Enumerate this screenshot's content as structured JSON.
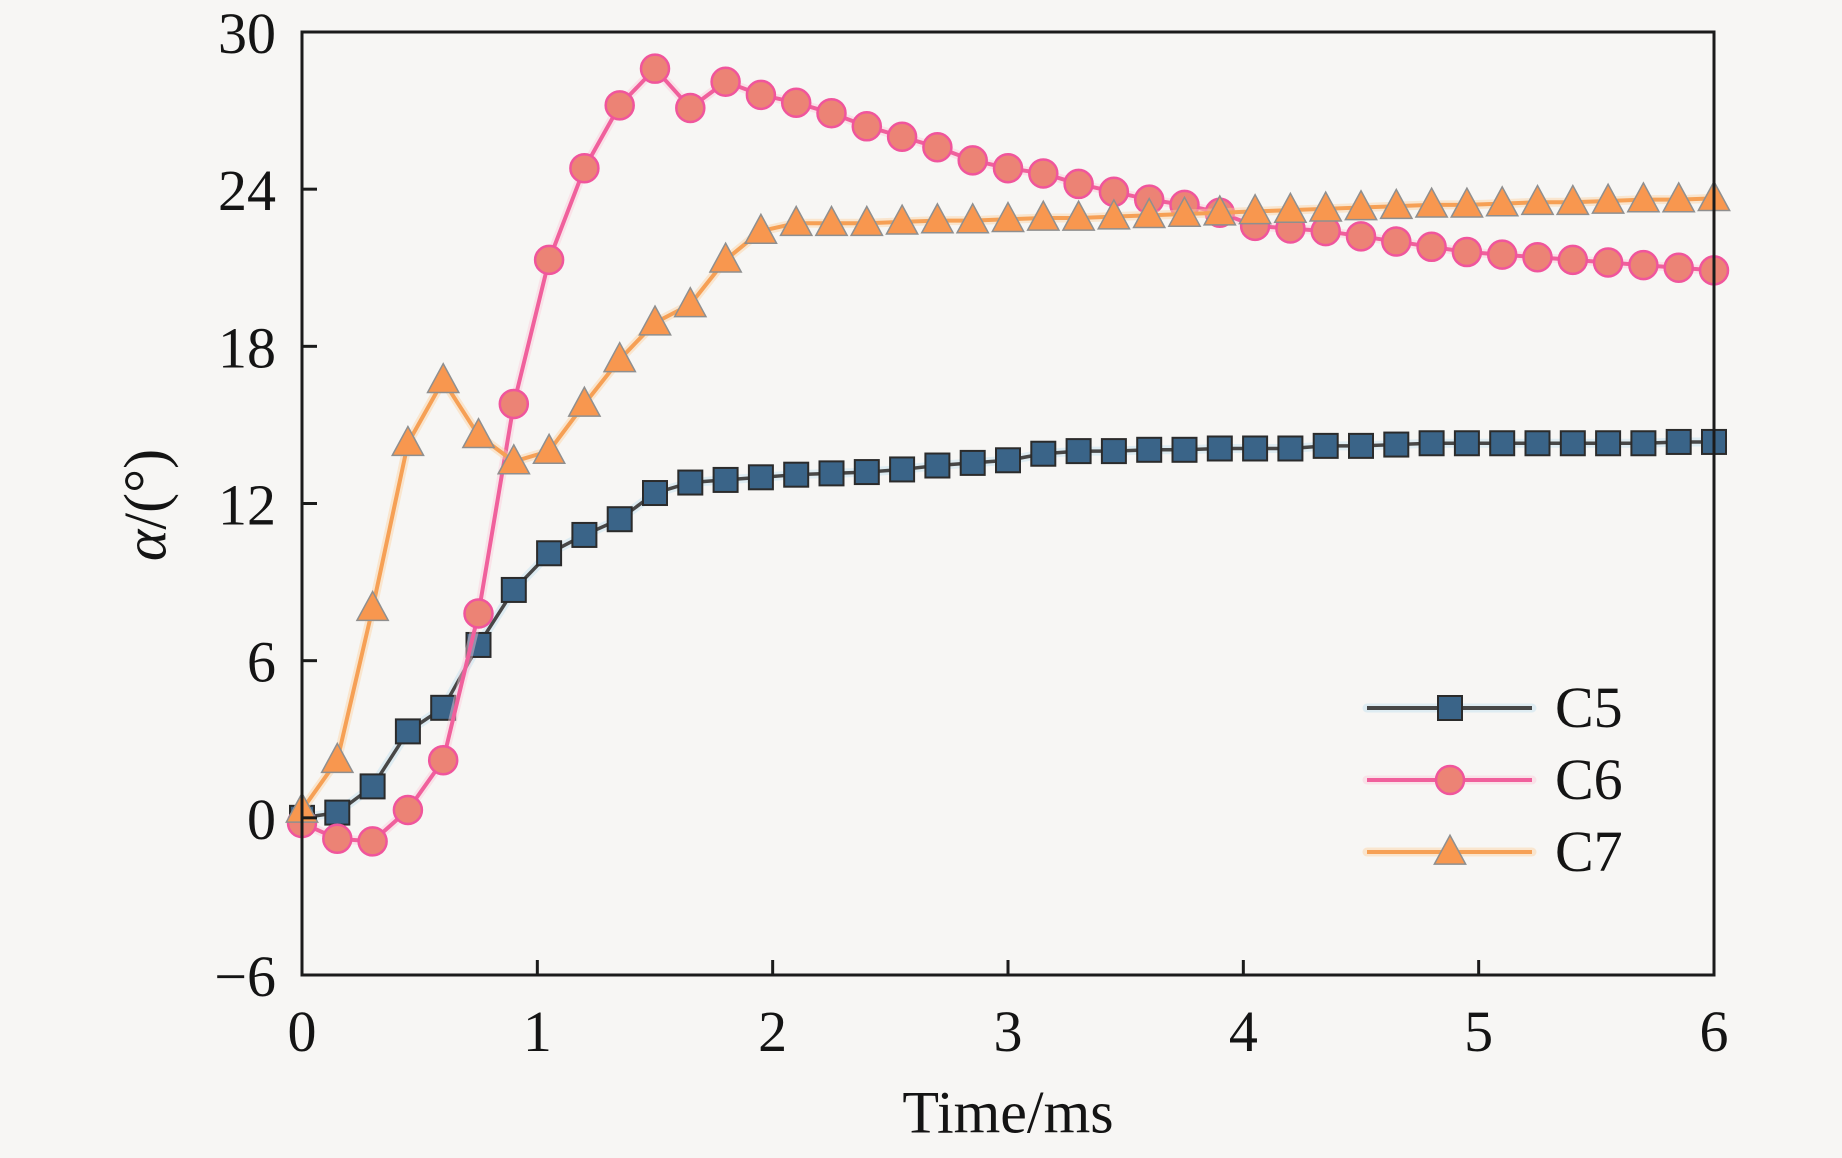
{
  "figure": {
    "background": "#f7f6f4",
    "axis_color": "#1b1b1b",
    "text_color": "#141414"
  },
  "chart_data": {
    "type": "line",
    "title": "",
    "xlabel": "Time/ms",
    "ylabel_italic": "α",
    "ylabel_rest": "/(°)",
    "xlim": [
      0,
      6
    ],
    "ylim": [
      -6,
      30
    ],
    "xticks": [
      0,
      1,
      2,
      3,
      4,
      5,
      6
    ],
    "yticks": [
      -6,
      0,
      6,
      12,
      18,
      24,
      30
    ],
    "grid": false,
    "legend_position": "lower right",
    "x": [
      0,
      0.15,
      0.3,
      0.45,
      0.6,
      0.75,
      0.9,
      1.05,
      1.2,
      1.35,
      1.5,
      1.65,
      1.8,
      1.95,
      2.1,
      2.25,
      2.4,
      2.55,
      2.7,
      2.85,
      3,
      3.15,
      3.3,
      3.45,
      3.6,
      3.75,
      3.9,
      4.05,
      4.2,
      4.35,
      4.5,
      4.65,
      4.8,
      4.95,
      5.1,
      5.25,
      5.4,
      5.55,
      5.7,
      5.85,
      6
    ],
    "series": [
      {
        "name": "C5",
        "marker": "square",
        "line_color": "#474747",
        "marker_fill": "#3a6488",
        "marker_edge": "#2b2b2b",
        "halo_color": "#bfe0ef",
        "values": [
          0,
          0.2,
          1.2,
          3.3,
          4.2,
          6.6,
          8.7,
          10.1,
          10.8,
          11.4,
          12.4,
          12.8,
          12.9,
          13,
          13.1,
          13.15,
          13.2,
          13.3,
          13.45,
          13.55,
          13.65,
          13.9,
          14,
          14,
          14.05,
          14.05,
          14.1,
          14.1,
          14.1,
          14.2,
          14.2,
          14.25,
          14.3,
          14.3,
          14.3,
          14.3,
          14.3,
          14.3,
          14.3,
          14.35,
          14.35
        ]
      },
      {
        "name": "C6",
        "marker": "circle",
        "line_color": "#f0609c",
        "marker_fill": "#ec8375",
        "marker_edge": "#f0559c",
        "halo_color": "#fbc9d9",
        "values": [
          -0.2,
          -0.8,
          -0.9,
          0.3,
          2.2,
          7.8,
          15.8,
          21.3,
          24.8,
          27.2,
          28.6,
          27.1,
          28.1,
          27.6,
          27.3,
          26.9,
          26.4,
          26,
          25.6,
          25.1,
          24.8,
          24.6,
          24.2,
          23.9,
          23.6,
          23.4,
          23.1,
          22.6,
          22.5,
          22.4,
          22.2,
          22,
          21.8,
          21.6,
          21.5,
          21.4,
          21.3,
          21.2,
          21.1,
          21,
          20.9
        ]
      },
      {
        "name": "C7",
        "marker": "triangle",
        "line_color": "#f6a055",
        "marker_fill": "#f8974f",
        "marker_edge": "#8f8f8f",
        "halo_color": "#fad0a0",
        "values": [
          0.3,
          2.2,
          8,
          14.3,
          16.7,
          14.6,
          13.6,
          14,
          15.8,
          17.5,
          18.9,
          19.6,
          21.3,
          22.4,
          22.7,
          22.7,
          22.7,
          22.75,
          22.8,
          22.8,
          22.85,
          22.9,
          22.9,
          22.95,
          23,
          23.05,
          23.1,
          23.15,
          23.2,
          23.25,
          23.3,
          23.35,
          23.4,
          23.4,
          23.45,
          23.5,
          23.5,
          23.55,
          23.6,
          23.6,
          23.65
        ]
      }
    ]
  }
}
